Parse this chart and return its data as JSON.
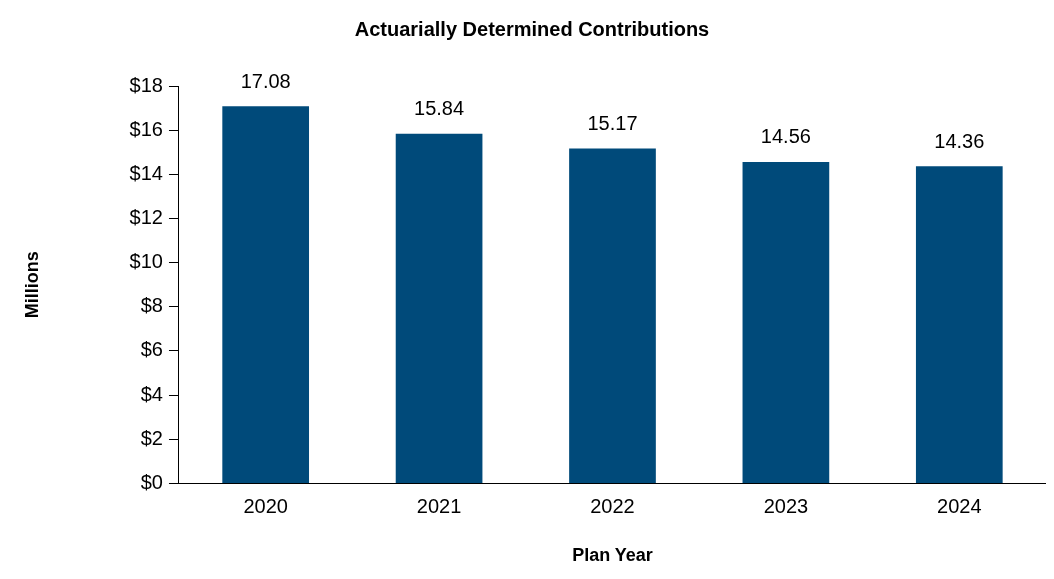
{
  "chart_data": {
    "type": "bar",
    "title": "Actuarially Determined Contributions",
    "xlabel": "Plan Year",
    "ylabel": "Millions",
    "categories": [
      "2020",
      "2021",
      "2022",
      "2023",
      "2024"
    ],
    "values": [
      17.08,
      15.84,
      15.17,
      14.56,
      14.36
    ],
    "color": "#004a7a",
    "ylim": [
      0,
      18
    ],
    "yticks": [
      {
        "value": 0,
        "label": "$0"
      },
      {
        "value": 2,
        "label": "$2"
      },
      {
        "value": 4,
        "label": "$4"
      },
      {
        "value": 6,
        "label": "$6"
      },
      {
        "value": 8,
        "label": "$8"
      },
      {
        "value": 10,
        "label": "$10"
      },
      {
        "value": 12,
        "label": "$12"
      },
      {
        "value": 14,
        "label": "$14"
      },
      {
        "value": 16,
        "label": "$16"
      },
      {
        "value": 18,
        "label": "$18"
      }
    ],
    "grid": false,
    "legend": false,
    "data_labels": true
  }
}
